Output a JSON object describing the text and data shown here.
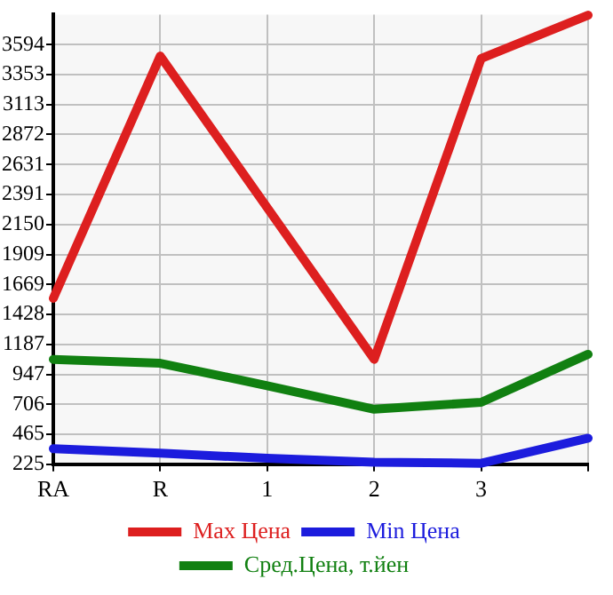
{
  "chart_data": {
    "type": "line",
    "categories": [
      "RA",
      "R",
      "1",
      "2",
      "3",
      null
    ],
    "series": [
      {
        "name": "Max Цена",
        "color": "#dd1f1f",
        "values": [
          1557,
          3502,
          2285,
          1067,
          3482,
          3830
        ]
      },
      {
        "name": "Min Цена",
        "color": "#1c1cdd",
        "values": [
          350,
          314,
          273,
          242,
          233,
          434
        ]
      },
      {
        "name": "Сред.Цена, т.йен",
        "color": "#118011",
        "values": [
          1067,
          1036,
          856,
          667,
          723,
          1108
        ]
      }
    ],
    "ylim": [
      225,
      3835
    ],
    "yticks": [
      225,
      465,
      706,
      947,
      1187,
      1428,
      1669,
      1909,
      2150,
      2391,
      2631,
      2872,
      3113,
      3353,
      3594
    ],
    "grid": true,
    "legend": "bottom",
    "marker": "none",
    "line_style": "solid"
  }
}
